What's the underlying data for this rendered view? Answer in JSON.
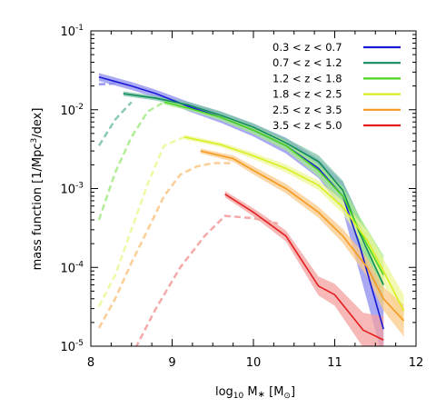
{
  "chart_data": {
    "type": "line",
    "xlabel": "log10 M* [M⊙]",
    "xlabel_parts": {
      "pre": "log",
      "sub": "10",
      "mid": " M",
      "star": "∗",
      "post": " [M",
      "sun": "⊙",
      "end": "]"
    },
    "ylabel": "mass function [1/Mpc³/dex]",
    "ylabel_parts": {
      "pre": "mass function [1/Mpc",
      "sup": "3",
      "post": "/dex]"
    },
    "xlim": [
      8,
      12
    ],
    "ylim": [
      1e-05,
      0.1
    ],
    "yscale": "log",
    "xticks": [
      "8",
      "9",
      "10",
      "11",
      "12"
    ],
    "yticks": [
      {
        "base": "10",
        "exp": "-5",
        "value": 1e-05
      },
      {
        "base": "10",
        "exp": "-4",
        "value": 0.0001
      },
      {
        "base": "10",
        "exp": "-3",
        "value": 0.001
      },
      {
        "base": "10",
        "exp": "-2",
        "value": 0.01
      },
      {
        "base": "10",
        "exp": "-1",
        "value": 0.1
      }
    ],
    "legend_position": "top-right",
    "series": [
      {
        "name": "0.3 < z < 0.7",
        "color": "#1a1ad6",
        "band_color": "#8c8cf0",
        "solid": {
          "x": [
            8.1,
            8.5,
            8.8,
            9.2,
            9.6,
            10.0,
            10.4,
            10.8,
            11.1,
            11.3,
            11.6
          ],
          "y": [
            0.026,
            0.02,
            0.016,
            0.011,
            0.008,
            0.0055,
            0.0035,
            0.0018,
            0.0008,
            0.0002,
            1.65e-05
          ]
        },
        "band_hw": [
          0.05,
          0.05,
          0.05,
          0.06,
          0.07,
          0.08,
          0.1,
          0.12,
          0.18,
          0.35,
          0.4
        ],
        "dashed": {
          "x": [
            8.1,
            8.3
          ],
          "y": [
            0.021,
            0.0215
          ]
        }
      },
      {
        "name": "0.7 < z < 1.2",
        "color": "#128c5c",
        "band_color": "#7fc4a8",
        "solid": {
          "x": [
            8.4,
            8.8,
            9.2,
            9.6,
            10.0,
            10.4,
            10.8,
            11.1,
            11.3,
            11.6
          ],
          "y": [
            0.016,
            0.014,
            0.0115,
            0.0085,
            0.006,
            0.0038,
            0.0022,
            0.00095,
            0.00028,
            6e-05
          ]
        },
        "band_hw": [
          0.03,
          0.03,
          0.04,
          0.05,
          0.05,
          0.06,
          0.08,
          0.12,
          0.2,
          0.3
        ],
        "dashed": {
          "x": [
            8.1,
            8.3,
            8.5
          ],
          "y": [
            0.0035,
            0.0075,
            0.0125
          ]
        }
      },
      {
        "name": "1.2 < z < 1.8",
        "color": "#4dd622",
        "band_color": "#a8ec8c",
        "solid": {
          "x": [
            8.9,
            9.2,
            9.6,
            10.0,
            10.4,
            10.8,
            11.1,
            11.3,
            11.6
          ],
          "y": [
            0.0125,
            0.0105,
            0.008,
            0.0055,
            0.0035,
            0.0017,
            0.0008,
            0.0003,
            8e-05
          ]
        },
        "band_hw": [
          0.03,
          0.03,
          0.04,
          0.05,
          0.06,
          0.08,
          0.12,
          0.18,
          0.25
        ],
        "dashed": {
          "x": [
            8.1,
            8.3,
            8.5,
            8.7,
            8.9
          ],
          "y": [
            0.0004,
            0.0016,
            0.0045,
            0.0095,
            0.0125
          ]
        }
      },
      {
        "name": "1.8 < z < 2.5",
        "color": "#d9ee21",
        "band_color": "#eef79a",
        "solid": {
          "x": [
            9.15,
            9.6,
            10.0,
            10.4,
            10.8,
            11.1,
            11.4,
            11.6,
            11.85
          ],
          "y": [
            0.0045,
            0.0036,
            0.0026,
            0.0018,
            0.0011,
            0.00058,
            0.00022,
            9e-05,
            2.8e-05
          ]
        },
        "band_hw": [
          0.03,
          0.03,
          0.04,
          0.05,
          0.06,
          0.08,
          0.12,
          0.15,
          0.2
        ],
        "dashed": {
          "x": [
            8.1,
            8.3,
            8.5,
            8.7,
            8.9,
            9.15
          ],
          "y": [
            3.2e-05,
            8e-05,
            0.0003,
            0.00115,
            0.0035,
            0.0045
          ]
        }
      },
      {
        "name": "2.5 < z < 3.5",
        "color": "#f59a1e",
        "band_color": "#fbc98a",
        "solid": {
          "x": [
            9.35,
            9.75,
            10.0,
            10.4,
            10.8,
            11.1,
            11.4,
            11.6,
            11.85
          ],
          "y": [
            0.003,
            0.0024,
            0.0017,
            0.001,
            0.0005,
            0.00025,
            0.0001,
            4e-05,
            2.1e-05
          ]
        },
        "band_hw": [
          0.03,
          0.04,
          0.05,
          0.06,
          0.07,
          0.09,
          0.12,
          0.15,
          0.2
        ],
        "dashed": {
          "x": [
            8.1,
            8.3,
            8.5,
            8.7,
            8.9,
            9.1,
            9.3,
            9.5,
            9.75
          ],
          "y": [
            1.7e-05,
            4e-05,
            0.000115,
            0.0003,
            0.0008,
            0.0015,
            0.0019,
            0.0021,
            0.0021
          ]
        }
      },
      {
        "name": "3.5 < z < 5.0",
        "color": "#e41c1c",
        "band_color": "#f4a0a0",
        "solid": {
          "x": [
            9.65,
            10.0,
            10.4,
            10.8,
            11.0,
            11.35,
            11.6
          ],
          "y": [
            0.00085,
            0.0005,
            0.00025,
            5.8e-05,
            4.5e-05,
            1.6e-05,
            1.2e-05
          ]
        },
        "band_hw": [
          0.04,
          0.05,
          0.07,
          0.12,
          0.14,
          0.22,
          0.3
        ],
        "dashed": {
          "x": [
            8.55,
            8.8,
            9.1,
            9.4,
            9.65,
            10.0,
            10.3
          ],
          "y": [
            9.5e-06,
            3e-05,
            0.0001,
            0.00025,
            0.00045,
            0.00042,
            0.00036
          ]
        }
      }
    ]
  }
}
